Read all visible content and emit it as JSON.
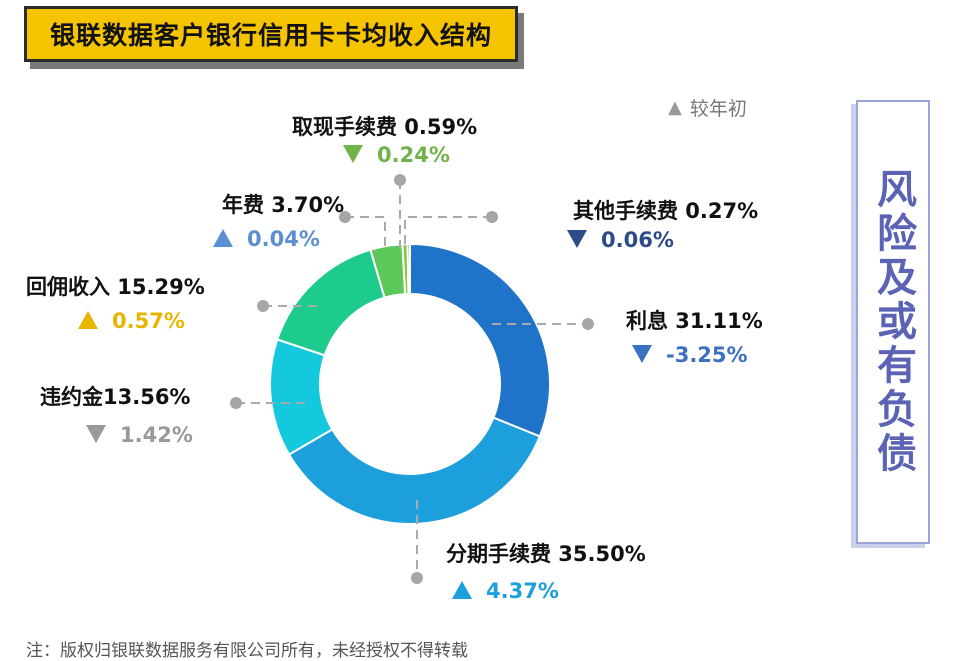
{
  "title": "银联数据客户银行信用卡卡均收入结构",
  "legend": {
    "symbol": "▲",
    "label": "较年初"
  },
  "side_label": "风险及或有负债",
  "footnote": "注：版权归银联数据服务有限公司所有，未经授权不得转载",
  "chart_data": {
    "type": "pie",
    "donut": true,
    "unit": "%",
    "slices": [
      {
        "name": "利息",
        "label": "利息 31.11%",
        "value": 31.11,
        "change": -3.25,
        "change_text": "-3.25%",
        "arrow": "down",
        "color": "#1f73c8",
        "text_color": "#3c71c2"
      },
      {
        "name": "分期手续费",
        "label": "分期手续费 35.50%",
        "value": 35.5,
        "change": 4.37,
        "change_text": "4.37%",
        "arrow": "up",
        "color": "#1d9fdb",
        "text_color": "#1d9fdb"
      },
      {
        "name": "违约金",
        "label": "违约金13.56%",
        "value": 13.56,
        "change": 1.42,
        "change_text": "1.42%",
        "arrow": "down",
        "color": "#14c9dd",
        "text_color": "#999999"
      },
      {
        "name": "回佣收入",
        "label": "回佣收入 15.29%",
        "value": 15.29,
        "change": 0.57,
        "change_text": "0.57%",
        "arrow": "up",
        "color": "#1dcc8c",
        "text_color": "#e8b600"
      },
      {
        "name": "年费",
        "label": "年费 3.70%",
        "value": 3.7,
        "change": 0.04,
        "change_text": "0.04%",
        "arrow": "up",
        "color": "#5cc85a",
        "text_color": "#5b8fd1"
      },
      {
        "name": "取现手续费",
        "label": "取现手续费 0.59%",
        "value": 0.59,
        "change": 0.24,
        "change_text": "0.24%",
        "arrow": "down",
        "color": "#8cc63f",
        "text_color": "#6fb34a"
      },
      {
        "name": "其他手续费",
        "label": "其他手续费 0.27%",
        "value": 0.27,
        "change": 0.06,
        "change_text": "0.06%",
        "arrow": "down",
        "color": "#2e8b57",
        "text_color": "#2d4a8a"
      }
    ]
  }
}
